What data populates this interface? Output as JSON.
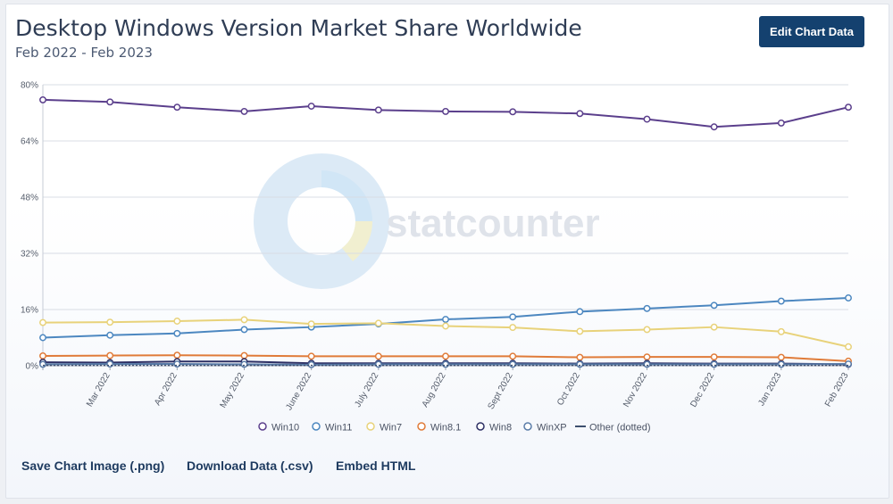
{
  "header": {
    "title": "Desktop Windows Version Market Share Worldwide",
    "subtitle": "Feb 2022 - Feb 2023",
    "edit_button": "Edit Chart Data"
  },
  "watermark": {
    "text": "statcounter"
  },
  "footer": {
    "save_image": "Save Chart Image (.png)",
    "download_data": "Download Data (.csv)",
    "embed_html": "Embed HTML"
  },
  "chart_data": {
    "type": "line",
    "x": [
      "Feb 2022",
      "Mar 2022",
      "Apr 2022",
      "May 2022",
      "June 2022",
      "July 2022",
      "Aug 2022",
      "Sept 2022",
      "Oct 2022",
      "Nov 2022",
      "Dec 2022",
      "Jan 2023",
      "Feb 2023"
    ],
    "xtick_labels": [
      "",
      "Mar 2022",
      "Apr 2022",
      "May 2022",
      "June 2022",
      "July 2022",
      "Aug 2022",
      "Sept 2022",
      "Oct 2022",
      "Nov 2022",
      "Dec 2022",
      "Jan 2023",
      "Feb 2023"
    ],
    "yticks": [
      "0%",
      "16%",
      "32%",
      "48%",
      "64%",
      "80%"
    ],
    "ylim": [
      0,
      80
    ],
    "grid": true,
    "legend_position": "bottom",
    "series": [
      {
        "name": "Win10",
        "color": "#5b3f8c",
        "marker": "circle",
        "values": [
          75.7,
          75.1,
          73.6,
          72.4,
          73.9,
          72.8,
          72.4,
          72.3,
          71.8,
          70.2,
          68.0,
          69.1,
          73.6
        ]
      },
      {
        "name": "Win11",
        "color": "#4c87c0",
        "marker": "circle",
        "values": [
          8.0,
          8.7,
          9.2,
          10.3,
          11.0,
          11.9,
          13.2,
          13.9,
          15.4,
          16.3,
          17.2,
          18.4,
          19.3
        ]
      },
      {
        "name": "Win7",
        "color": "#e8d27a",
        "marker": "circle",
        "values": [
          12.3,
          12.4,
          12.7,
          13.1,
          11.9,
          12.1,
          11.3,
          10.9,
          9.8,
          10.3,
          11.0,
          9.7,
          5.4
        ]
      },
      {
        "name": "Win8.1",
        "color": "#e07b39",
        "marker": "circle",
        "values": [
          2.8,
          2.9,
          3.0,
          2.9,
          2.7,
          2.7,
          2.7,
          2.7,
          2.4,
          2.5,
          2.5,
          2.4,
          1.3
        ]
      },
      {
        "name": "Win8",
        "color": "#2c2f64",
        "marker": "circle",
        "values": [
          1.0,
          0.9,
          1.2,
          1.2,
          0.7,
          0.7,
          0.7,
          0.7,
          0.6,
          0.7,
          0.6,
          0.6,
          0.4
        ]
      },
      {
        "name": "WinXP",
        "color": "#5a7ca8",
        "marker": "circle",
        "values": [
          0.4,
          0.5,
          0.5,
          0.4,
          0.3,
          0.4,
          0.4,
          0.4,
          0.4,
          0.4,
          0.4,
          0.4,
          0.5
        ]
      },
      {
        "name": "Other (dotted)",
        "color": "#3d4f6e",
        "marker": "line",
        "values": [
          0.1,
          0.1,
          0.1,
          0.1,
          0.1,
          0.1,
          0.1,
          0.1,
          0.1,
          0.1,
          0.1,
          0.1,
          0.1
        ]
      }
    ]
  }
}
